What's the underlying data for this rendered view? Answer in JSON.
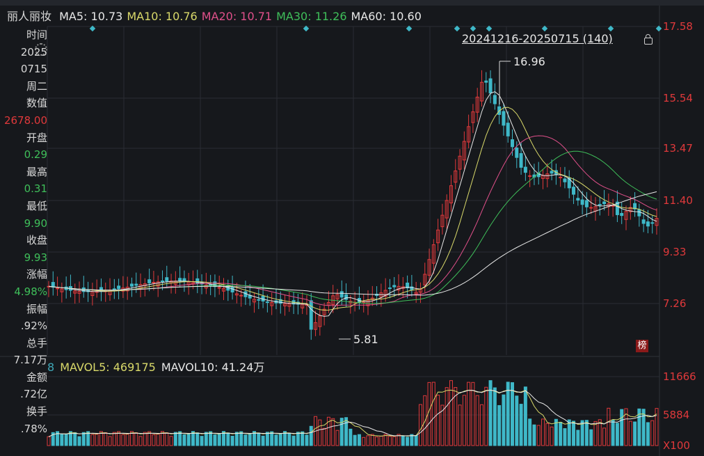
{
  "stock_name": "丽人丽妆",
  "ma_legend": [
    {
      "label": "MA5:",
      "value": "10.73",
      "color": "#e8e8e8"
    },
    {
      "label": "MA10:",
      "value": "10.76",
      "color": "#d9d96a"
    },
    {
      "label": "MA20:",
      "value": "10.71",
      "color": "#e0508a"
    },
    {
      "label": "MA30:",
      "value": "11.26",
      "color": "#3fbf5a"
    },
    {
      "label": "MA60:",
      "value": "10.60",
      "color": "#e8e8e8"
    }
  ],
  "range_label": "20241216-20250715 (140)",
  "sidebar": [
    {
      "text": "时间",
      "color": "#d8d8d8"
    },
    {
      "text": "2025",
      "color": "#d8d8d8"
    },
    {
      "text": "0715",
      "color": "#d8d8d8"
    },
    {
      "text": "周二",
      "color": "#d8d8d8"
    },
    {
      "text": "数值",
      "color": "#d8d8d8"
    },
    {
      "text": "2678.00",
      "color": "#e0393b"
    },
    {
      "text": "开盘",
      "color": "#d8d8d8"
    },
    {
      "text": "0.29",
      "color": "#3fbf5a"
    },
    {
      "text": "最高",
      "color": "#d8d8d8"
    },
    {
      "text": "0.31",
      "color": "#3fbf5a"
    },
    {
      "text": "最低",
      "color": "#d8d8d8"
    },
    {
      "text": "9.90",
      "color": "#3fbf5a"
    },
    {
      "text": "收盘",
      "color": "#d8d8d8"
    },
    {
      "text": "9.93",
      "color": "#3fbf5a"
    },
    {
      "text": "涨幅",
      "color": "#d8d8d8"
    },
    {
      "text": "4.98%",
      "color": "#3fbf5a"
    },
    {
      "text": "振幅",
      "color": "#d8d8d8"
    },
    {
      "text": ".92%",
      "color": "#d8d8d8"
    },
    {
      "text": "总手",
      "color": "#d8d8d8"
    },
    {
      "text": "7.17万",
      "color": "#d8d8d8"
    },
    {
      "text": "金额",
      "color": "#d8d8d8"
    },
    {
      "text": ".72亿",
      "color": "#d8d8d8"
    },
    {
      "text": "换手",
      "color": "#d8d8d8"
    },
    {
      "text": ".78%",
      "color": "#d8d8d8"
    }
  ],
  "vol_legend": [
    {
      "label": "8",
      "value": "",
      "color": "#3fa8b8"
    },
    {
      "label": "MAVOL5:",
      "value": "469175",
      "color": "#d9d96a"
    },
    {
      "label": "MAVOL10:",
      "value": "41.24万",
      "color": "#e8e8e8"
    }
  ],
  "price_axis": [
    "17.58",
    "15.54",
    "13.47",
    "11.40",
    "9.33",
    "7.26"
  ],
  "volume_axis": [
    "11666",
    "5884",
    "X100"
  ],
  "high_marker": "16.96",
  "low_marker": "5.81",
  "badge": "榜",
  "colors": {
    "up": "#e0393b",
    "down": "#3fb8c8",
    "bg": "#16181c",
    "grid": "#2a2d33"
  }
}
